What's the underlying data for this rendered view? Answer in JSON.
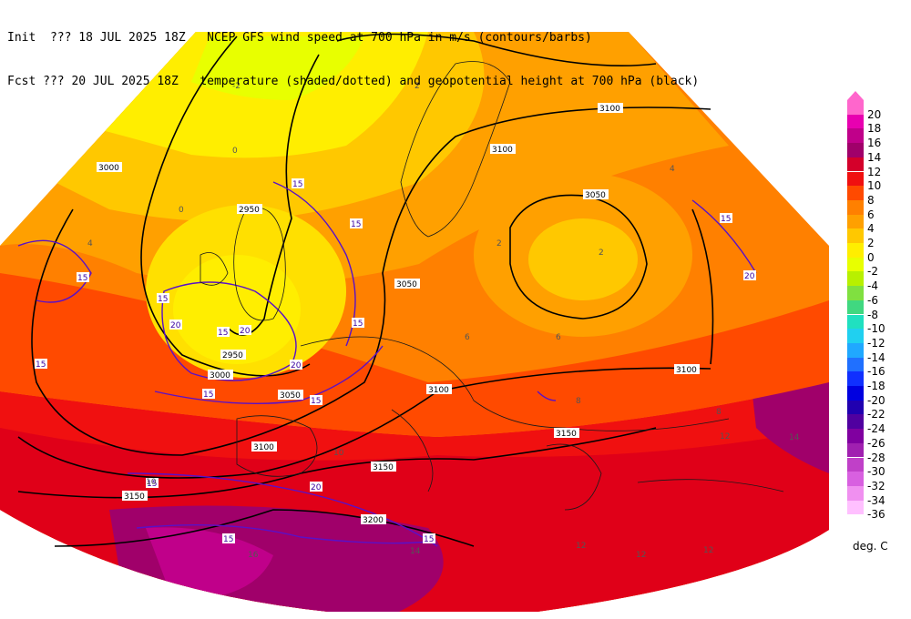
{
  "header": {
    "line1_left": "Init  ??? 18 JUL 2025 18Z",
    "line1_right": "NCEP GFS wind speed at 700 hPa in m/s (contours/barbs)",
    "line2_left": "Fcst ??? 20 JUL 2025 18Z",
    "line2_right": "temperature (shaded/dotted) and geopotential height at 700 hPa (black)"
  },
  "legend": {
    "units": "deg. C",
    "levels": [
      {
        "label": "20",
        "color": "#ff66cc"
      },
      {
        "label": "18",
        "color": "#e800b0"
      },
      {
        "label": "16",
        "color": "#c0008a"
      },
      {
        "label": "14",
        "color": "#a0006a"
      },
      {
        "label": "12",
        "color": "#d4002a"
      },
      {
        "label": "10",
        "color": "#f01010"
      },
      {
        "label": "8",
        "color": "#ff4a00"
      },
      {
        "label": "6",
        "color": "#ff8000"
      },
      {
        "label": "4",
        "color": "#ffa000"
      },
      {
        "label": "2",
        "color": "#ffc800"
      },
      {
        "label": "0",
        "color": "#ffee00"
      },
      {
        "label": "-2",
        "color": "#e8ff00"
      },
      {
        "label": "-4",
        "color": "#b8f000"
      },
      {
        "label": "-6",
        "color": "#80e040"
      },
      {
        "label": "-8",
        "color": "#40d880"
      },
      {
        "label": "-10",
        "color": "#20e0c0"
      },
      {
        "label": "-12",
        "color": "#20d0f0"
      },
      {
        "label": "-14",
        "color": "#20a8ff"
      },
      {
        "label": "-16",
        "color": "#2070ff"
      },
      {
        "label": "-18",
        "color": "#1030ff"
      },
      {
        "label": "-20",
        "color": "#0000e0"
      },
      {
        "label": "-22",
        "color": "#2000b0"
      },
      {
        "label": "-24",
        "color": "#5000a0"
      },
      {
        "label": "-26",
        "color": "#8000a0"
      },
      {
        "label": "-28",
        "color": "#a020b0"
      },
      {
        "label": "-30",
        "color": "#c040c8"
      },
      {
        "label": "-32",
        "color": "#d860e0"
      },
      {
        "label": "-34",
        "color": "#f090f0"
      },
      {
        "label": "-36",
        "color": "#ffc0ff"
      }
    ]
  },
  "map": {
    "height_labels": [
      "3000",
      "2950",
      "2950",
      "3000",
      "3050",
      "3050",
      "3100",
      "3100",
      "3100",
      "3100",
      "3150",
      "3150",
      "3150",
      "3200",
      "3050",
      "3100"
    ],
    "wind_labels": [
      "15",
      "15",
      "15",
      "15",
      "20",
      "20",
      "20",
      "15",
      "15",
      "15",
      "15",
      "15",
      "15",
      "20",
      "15",
      "15",
      "20",
      "15"
    ],
    "temp_labels": [
      "-2",
      "0",
      "0",
      "2",
      "2",
      "2",
      "4",
      "4",
      "6",
      "6",
      "8",
      "8",
      "10",
      "10",
      "12",
      "12",
      "12",
      "12",
      "14",
      "14",
      "16"
    ]
  }
}
